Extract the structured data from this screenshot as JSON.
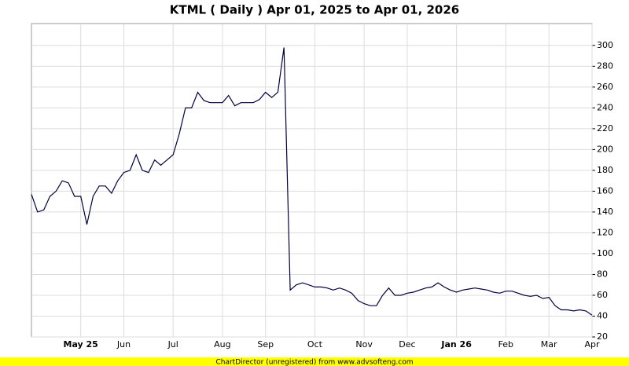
{
  "chart_data": {
    "type": "line",
    "title": "KTML ( Daily ) Apr 01, 2025 to Apr 01, 2026",
    "footer": "ChartDirector (unregistered) from www.advsofteng.com",
    "categories": [
      null,
      null,
      null,
      null,
      null,
      null,
      null,
      null,
      "May 25",
      null,
      null,
      null,
      null,
      null,
      null,
      "Jun",
      null,
      null,
      null,
      null,
      null,
      null,
      null,
      "Jul",
      null,
      null,
      null,
      null,
      null,
      null,
      null,
      "Aug",
      null,
      null,
      null,
      null,
      null,
      null,
      "Sep",
      null,
      null,
      null,
      null,
      null,
      null,
      null,
      "Oct",
      null,
      null,
      null,
      null,
      null,
      null,
      null,
      "Nov",
      null,
      null,
      null,
      null,
      null,
      null,
      "Dec",
      null,
      null,
      null,
      null,
      null,
      null,
      null,
      "Jan 26",
      null,
      null,
      null,
      null,
      null,
      null,
      null,
      "Feb",
      null,
      null,
      null,
      null,
      null,
      null,
      "Mar",
      null,
      null,
      null,
      null,
      null,
      null,
      "Apr"
    ],
    "series": [
      {
        "name": "KTML",
        "color": "#000040",
        "values": [
          157,
          140,
          142,
          155,
          160,
          170,
          168,
          155,
          155,
          128,
          155,
          165,
          165,
          158,
          170,
          178,
          180,
          195,
          180,
          178,
          190,
          185,
          190,
          195,
          215,
          240,
          240,
          255,
          247,
          245,
          245,
          245,
          252,
          242,
          245,
          245,
          245,
          248,
          255,
          250,
          255,
          298,
          65,
          70,
          72,
          70,
          68,
          68,
          67,
          65,
          67,
          65,
          62,
          55,
          52,
          50,
          50,
          60,
          67,
          60,
          60,
          62,
          63,
          65,
          67,
          68,
          72,
          68,
          65,
          63,
          65,
          66,
          67,
          66,
          65,
          63,
          62,
          64,
          64,
          62,
          60,
          59,
          60,
          57,
          58,
          50,
          46,
          46,
          45,
          46,
          45,
          41
        ]
      }
    ],
    "ylim": [
      20,
      321
    ],
    "yticks": [
      20,
      40,
      60,
      80,
      100,
      120,
      140,
      160,
      180,
      200,
      220,
      240,
      260,
      280,
      300
    ],
    "grid": true
  }
}
